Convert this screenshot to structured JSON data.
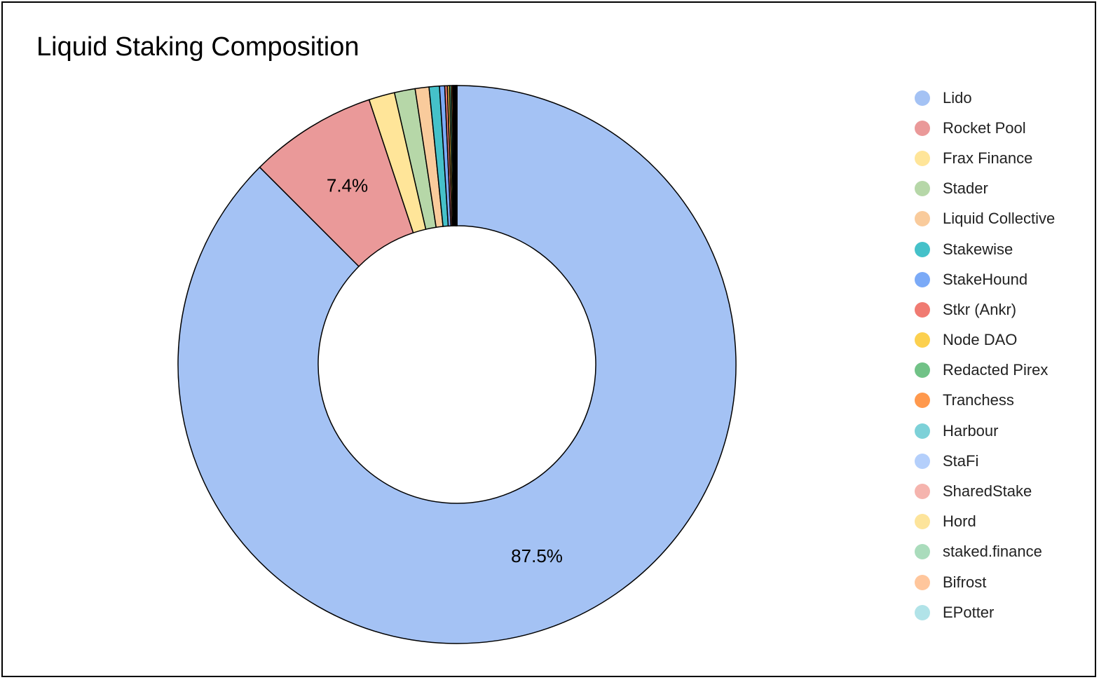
{
  "chart_data": {
    "type": "pie",
    "title": "Liquid Staking Composition",
    "donut": true,
    "legend_position": "right",
    "categories": [
      "Lido",
      "Rocket Pool",
      "Frax Finance",
      "Stader",
      "Liquid Collective",
      "Stakewise",
      "StakeHound",
      "Stkr (Ankr)",
      "Node DAO",
      "Redacted Pirex",
      "Tranchess",
      "Harbour",
      "StaFi",
      "SharedStake",
      "Hord",
      "staked.finance",
      "Bifrost",
      "EPotter"
    ],
    "values": [
      87.5,
      7.4,
      1.5,
      1.2,
      0.8,
      0.6,
      0.3,
      0.15,
      0.12,
      0.1,
      0.08,
      0.06,
      0.05,
      0.04,
      0.04,
      0.03,
      0.02,
      0.01
    ],
    "data_labels": [
      "87.5%",
      "7.4%",
      "",
      "",
      "",
      "",
      "",
      "",
      "",
      "",
      "",
      "",
      "",
      "",
      "",
      "",
      "",
      ""
    ],
    "colors": [
      "#a4c2f4",
      "#ea9999",
      "#ffe599",
      "#b6d7a8",
      "#f9cb9c",
      "#45c1c9",
      "#7baaf7",
      "#f07b72",
      "#fcd04f",
      "#71c287",
      "#ff994d",
      "#7dd1d8",
      "#b4cffb",
      "#f5b4ae",
      "#fde49b",
      "#aadcbc",
      "#ffc69c",
      "#b1e3e8"
    ]
  }
}
